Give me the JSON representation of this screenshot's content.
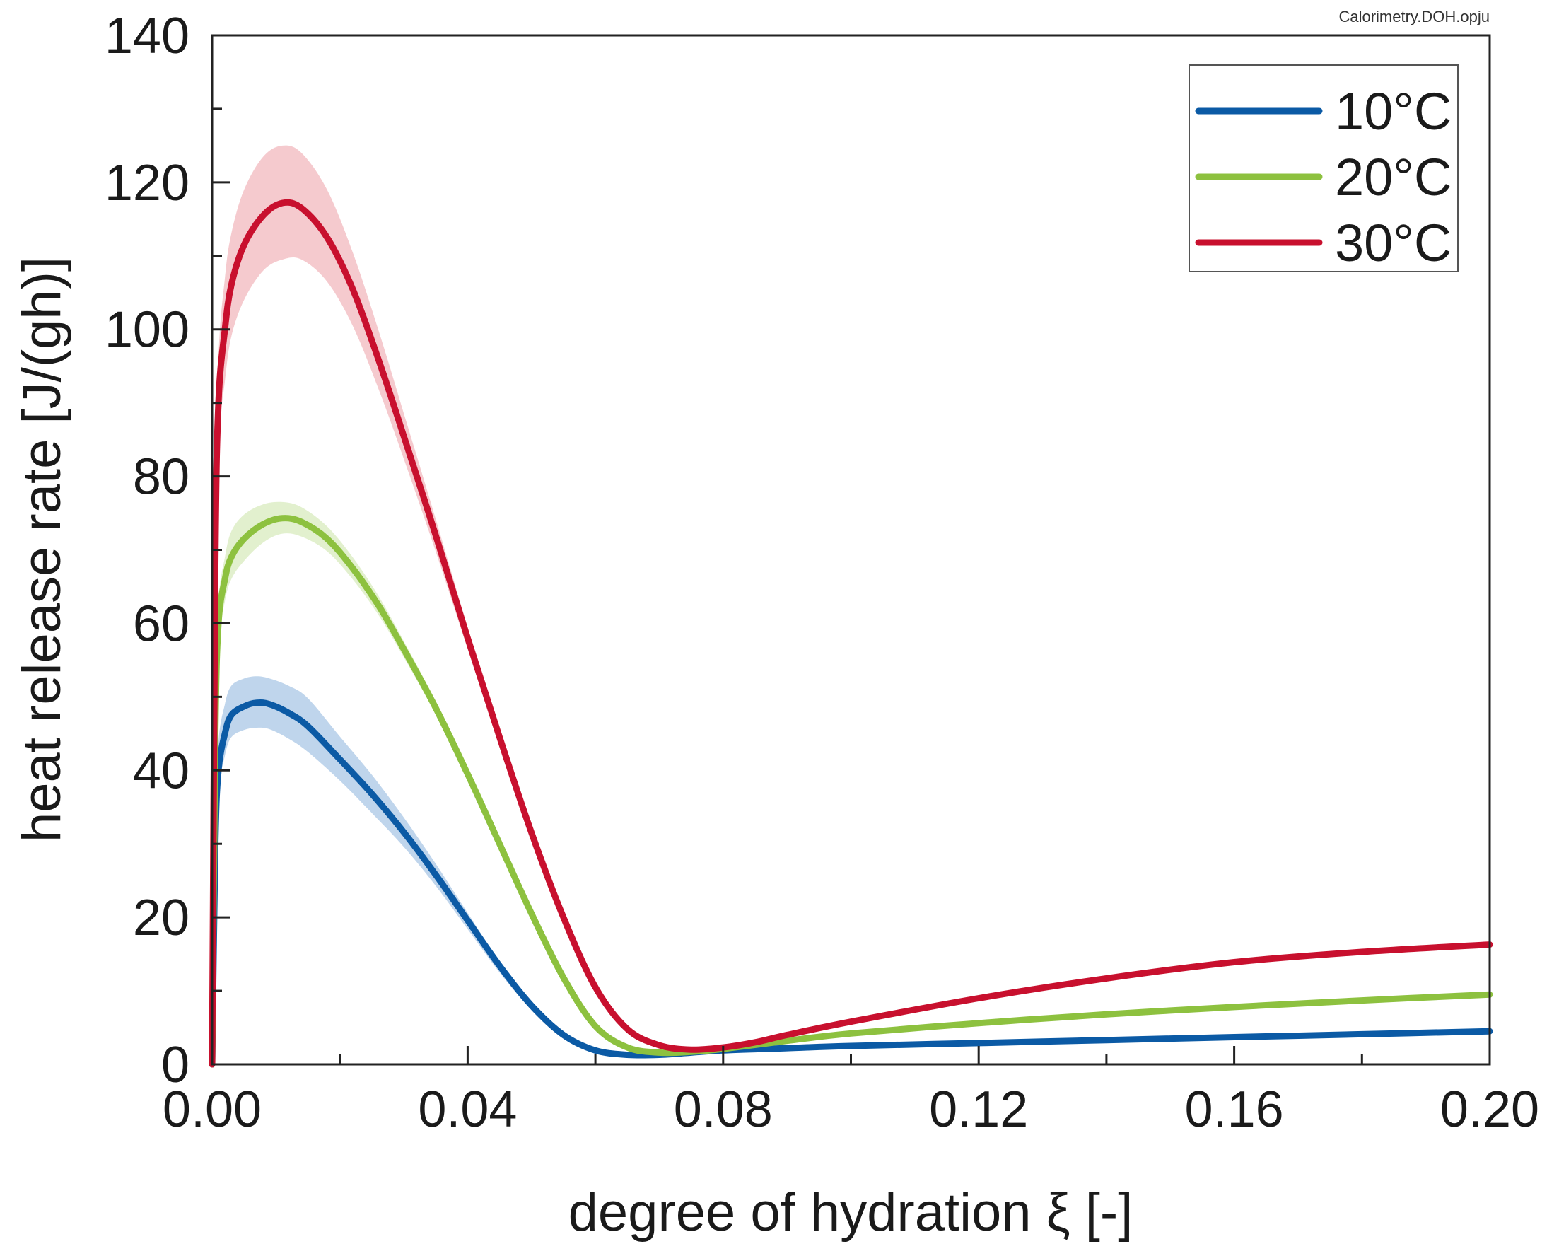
{
  "chart_data": {
    "type": "line",
    "source_label": "Calorimetry.DOH.opju",
    "xlabel": "degree of hydration ξ [-]",
    "ylabel": "heat release rate [J/(gh)]",
    "xlim": [
      0,
      0.2
    ],
    "ylim": [
      0,
      140
    ],
    "xticks": [
      0,
      0.04,
      0.08,
      0.12,
      0.16,
      0.2
    ],
    "xtick_labels": [
      "0.00",
      "0.04",
      "0.08",
      "0.12",
      "0.16",
      "0.20"
    ],
    "yticks": [
      0,
      20,
      40,
      60,
      80,
      100,
      120,
      140
    ],
    "ytick_labels": [
      "0",
      "20",
      "40",
      "60",
      "80",
      "100",
      "120",
      "140"
    ],
    "legend_position": "top-right",
    "series": [
      {
        "name": "10°C",
        "color": "#0b5aa5",
        "band_color": "#a9c7e6",
        "x": [
          0,
          0.0005,
          0.001,
          0.002,
          0.003,
          0.005,
          0.007,
          0.009,
          0.012,
          0.015,
          0.02,
          0.025,
          0.03,
          0.035,
          0.04,
          0.045,
          0.05,
          0.055,
          0.06,
          0.065,
          0.07,
          0.075,
          0.08,
          0.09,
          0.1,
          0.12,
          0.14,
          0.16,
          0.18,
          0.2
        ],
        "y": [
          0,
          30,
          40,
          45,
          47.5,
          48.7,
          49.2,
          49,
          47.8,
          46,
          41.5,
          36.8,
          31.6,
          25.8,
          19.6,
          13.4,
          8,
          4,
          1.9,
          1.3,
          1.3,
          1.6,
          1.9,
          2.2,
          2.5,
          2.9,
          3.3,
          3.7,
          4.1,
          4.5
        ],
        "upper": [
          0,
          33,
          44,
          49,
          51.5,
          52.5,
          52.8,
          52.5,
          51.5,
          49.8,
          44.6,
          39.4,
          33.6,
          27.3,
          20.6,
          14,
          8.4,
          4.2,
          2,
          1.4,
          1.4,
          1.7,
          2,
          2.3,
          2.6,
          3,
          3.4,
          3.8,
          4.2,
          4.6
        ],
        "lower": [
          0,
          27,
          37,
          42,
          44.5,
          45.5,
          45.8,
          45.6,
          44.3,
          42.5,
          38.6,
          34.2,
          29.6,
          24.3,
          18.4,
          12.5,
          7.4,
          3.7,
          1.8,
          1.2,
          1.2,
          1.5,
          1.8,
          2.1,
          2.4,
          2.8,
          3.2,
          3.6,
          4,
          4.4
        ]
      },
      {
        "name": "20°C",
        "color": "#8dc13f",
        "band_color": "#d8ebbd",
        "x": [
          0,
          0.0005,
          0.001,
          0.002,
          0.003,
          0.005,
          0.008,
          0.011,
          0.014,
          0.018,
          0.022,
          0.026,
          0.03,
          0.035,
          0.04,
          0.045,
          0.05,
          0.055,
          0.06,
          0.065,
          0.07,
          0.075,
          0.08,
          0.09,
          0.1,
          0.12,
          0.14,
          0.16,
          0.18,
          0.2
        ],
        "y": [
          0,
          45,
          60,
          66,
          69,
          71.5,
          73.5,
          74.3,
          73.8,
          71.5,
          67.5,
          62.5,
          56.5,
          48.5,
          39.5,
          30,
          20.5,
          11.8,
          5.2,
          2.3,
          1.6,
          1.7,
          2.1,
          3.2,
          4.2,
          5.6,
          6.8,
          7.8,
          8.7,
          9.5
        ],
        "upper": [
          0,
          48,
          63,
          69,
          72.5,
          74.8,
          76.2,
          76.5,
          75.8,
          73.2,
          69,
          63.8,
          57.6,
          49.4,
          40.2,
          30.6,
          20.9,
          12.1,
          5.4,
          2.4,
          1.7,
          1.8,
          2.2,
          3.3,
          4.3,
          5.7,
          6.9,
          7.9,
          8.8,
          9.6
        ],
        "lower": [
          0,
          42,
          57,
          63,
          66,
          68.5,
          71,
          72.2,
          71.8,
          69.8,
          66,
          61.2,
          55.4,
          47.6,
          38.8,
          29.4,
          20.1,
          11.5,
          5,
          2.2,
          1.5,
          1.6,
          2,
          3.1,
          4.1,
          5.5,
          6.7,
          7.7,
          8.6,
          9.4
        ]
      },
      {
        "name": "30°C",
        "color": "#c8102e",
        "band_color": "#f2b8bd",
        "x": [
          0,
          0.0005,
          0.001,
          0.002,
          0.003,
          0.005,
          0.008,
          0.011,
          0.014,
          0.018,
          0.022,
          0.026,
          0.03,
          0.035,
          0.04,
          0.045,
          0.05,
          0.055,
          0.06,
          0.065,
          0.07,
          0.075,
          0.08,
          0.085,
          0.09,
          0.1,
          0.12,
          0.14,
          0.16,
          0.18,
          0.2
        ],
        "y": [
          0,
          68,
          90,
          100,
          106,
          111.5,
          115.5,
          117.2,
          116.5,
          112.5,
          105.5,
          96,
          85.5,
          72,
          58,
          44.5,
          31.5,
          20,
          10.5,
          4.8,
          2.6,
          2,
          2.3,
          3,
          4,
          5.8,
          9,
          11.7,
          13.9,
          15.3,
          16.3
        ],
        "upper": [
          0,
          72,
          96,
          107,
          113,
          119,
          123.5,
          125,
          124,
          119,
          110.5,
          100,
          88.6,
          74.2,
          59.5,
          45.5,
          32.2,
          20.4,
          10.7,
          4.9,
          2.7,
          2.1,
          2.4,
          3.1,
          4.1,
          5.9,
          9.1,
          11.8,
          14,
          15.4,
          16.4
        ],
        "lower": [
          0,
          64,
          84,
          93,
          99,
          104,
          108,
          109.5,
          109.5,
          106.5,
          100.5,
          92,
          82.4,
          69.8,
          56.5,
          43.5,
          30.8,
          19.6,
          10.3,
          4.7,
          2.5,
          1.9,
          2.2,
          2.9,
          3.9,
          5.7,
          8.9,
          11.6,
          13.8,
          15.2,
          16.2
        ]
      }
    ]
  }
}
